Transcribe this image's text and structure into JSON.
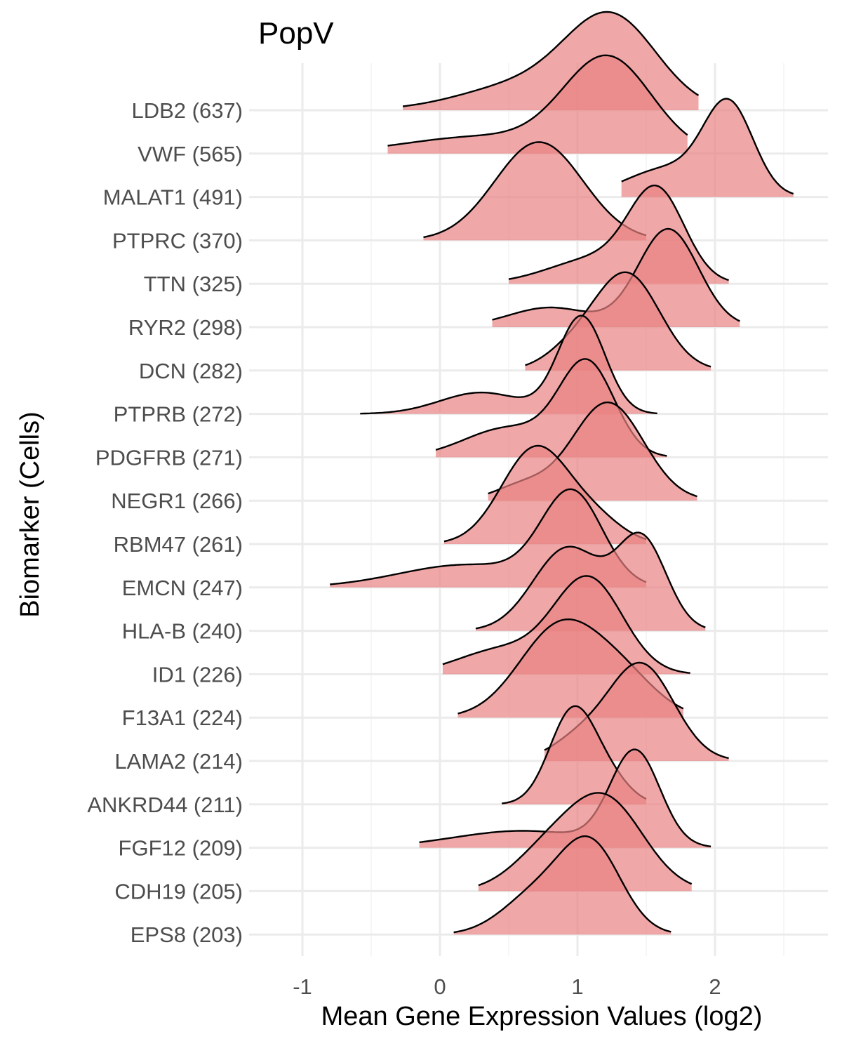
{
  "chart_data": {
    "type": "ridgeline",
    "title": "PopV",
    "xlabel": "Mean Gene Expression Values (log2)",
    "ylabel": "Biomarker (Cells)",
    "xlim": [
      -1.3,
      2.8
    ],
    "x_ticks": [
      -1,
      0,
      1,
      2
    ],
    "x_tick_labels": [
      "-1",
      "0",
      "1",
      "2"
    ],
    "grid": true,
    "fill_color": "#ea8282",
    "outline_color": "#000000",
    "series": [
      {
        "label": "LDB2 (637)",
        "range": [
          -0.27,
          1.88
        ],
        "peaks": [
          {
            "mu": 1.25,
            "sd": 0.33,
            "h": 1.0
          },
          {
            "mu": 0.6,
            "sd": 0.45,
            "h": 0.28
          }
        ]
      },
      {
        "label": "VWF (565)",
        "range": [
          -0.38,
          1.8
        ],
        "peaks": [
          {
            "mu": 1.22,
            "sd": 0.32,
            "h": 1.0
          },
          {
            "mu": 0.3,
            "sd": 0.55,
            "h": 0.18
          }
        ]
      },
      {
        "label": "MALAT1 (491)",
        "range": [
          1.32,
          2.57
        ],
        "peaks": [
          {
            "mu": 2.1,
            "sd": 0.18,
            "h": 1.0
          },
          {
            "mu": 1.65,
            "sd": 0.3,
            "h": 0.32
          }
        ]
      },
      {
        "label": "PTPRC (370)",
        "range": [
          -0.12,
          1.5
        ],
        "peaks": [
          {
            "mu": 0.72,
            "sd": 0.32,
            "h": 1.0
          }
        ]
      },
      {
        "label": "TTN (325)",
        "range": [
          0.5,
          2.1
        ],
        "peaks": [
          {
            "mu": 1.58,
            "sd": 0.2,
            "h": 1.0
          },
          {
            "mu": 1.15,
            "sd": 0.35,
            "h": 0.3
          }
        ]
      },
      {
        "label": "RYR2 (298)",
        "range": [
          0.38,
          2.18
        ],
        "peaks": [
          {
            "mu": 1.66,
            "sd": 0.22,
            "h": 1.0
          },
          {
            "mu": 0.8,
            "sd": 0.3,
            "h": 0.2
          }
        ]
      },
      {
        "label": "DCN (282)",
        "range": [
          0.62,
          1.97
        ],
        "peaks": [
          {
            "mu": 1.36,
            "sd": 0.24,
            "h": 1.0
          },
          {
            "mu": 0.95,
            "sd": 0.2,
            "h": 0.18
          }
        ]
      },
      {
        "label": "PTPRB (272)",
        "range": [
          -0.58,
          1.58
        ],
        "peaks": [
          {
            "mu": 1.03,
            "sd": 0.17,
            "h": 1.0
          },
          {
            "mu": 0.3,
            "sd": 0.3,
            "h": 0.22
          }
        ]
      },
      {
        "label": "PDGFRB (271)",
        "range": [
          -0.03,
          1.65
        ],
        "peaks": [
          {
            "mu": 1.07,
            "sd": 0.2,
            "h": 1.0
          },
          {
            "mu": 0.5,
            "sd": 0.32,
            "h": 0.32
          }
        ]
      },
      {
        "label": "NEGR1 (266)",
        "range": [
          0.35,
          1.87
        ],
        "peaks": [
          {
            "mu": 1.22,
            "sd": 0.26,
            "h": 1.0
          },
          {
            "mu": 0.6,
            "sd": 0.2,
            "h": 0.15
          }
        ]
      },
      {
        "label": "RBM47 (261)",
        "range": [
          0.03,
          1.5
        ],
        "peaks": [
          {
            "mu": 0.7,
            "sd": 0.25,
            "h": 1.0
          },
          {
            "mu": 1.15,
            "sd": 0.2,
            "h": 0.2
          }
        ]
      },
      {
        "label": "EMCN (247)",
        "range": [
          -0.8,
          1.5
        ],
        "peaks": [
          {
            "mu": 0.96,
            "sd": 0.22,
            "h": 1.0
          },
          {
            "mu": 0.2,
            "sd": 0.5,
            "h": 0.25
          }
        ]
      },
      {
        "label": "HLA-B (240)",
        "range": [
          0.26,
          1.93
        ],
        "peaks": [
          {
            "mu": 0.93,
            "sd": 0.25,
            "h": 0.82
          },
          {
            "mu": 1.47,
            "sd": 0.18,
            "h": 0.88
          }
        ]
      },
      {
        "label": "ID1 (226)",
        "range": [
          0.02,
          1.82
        ],
        "peaks": [
          {
            "mu": 1.08,
            "sd": 0.25,
            "h": 1.0
          },
          {
            "mu": 0.45,
            "sd": 0.32,
            "h": 0.26
          }
        ]
      },
      {
        "label": "F13A1 (224)",
        "range": [
          0.13,
          1.77
        ],
        "peaks": [
          {
            "mu": 0.88,
            "sd": 0.3,
            "h": 1.0
          },
          {
            "mu": 1.35,
            "sd": 0.25,
            "h": 0.35
          }
        ]
      },
      {
        "label": "LAMA2 (214)",
        "range": [
          0.76,
          2.1
        ],
        "peaks": [
          {
            "mu": 1.46,
            "sd": 0.24,
            "h": 1.0
          },
          {
            "mu": 1.0,
            "sd": 0.2,
            "h": 0.2
          }
        ]
      },
      {
        "label": "ANKRD44 (211)",
        "range": [
          0.45,
          1.5
        ],
        "peaks": [
          {
            "mu": 0.97,
            "sd": 0.17,
            "h": 1.0
          },
          {
            "mu": 1.25,
            "sd": 0.15,
            "h": 0.2
          }
        ]
      },
      {
        "label": "FGF12 (209)",
        "range": [
          -0.15,
          1.97
        ],
        "peaks": [
          {
            "mu": 1.42,
            "sd": 0.18,
            "h": 1.0
          },
          {
            "mu": 0.6,
            "sd": 0.5,
            "h": 0.18
          }
        ]
      },
      {
        "label": "CDH19 (205)",
        "range": [
          0.28,
          1.83
        ],
        "peaks": [
          {
            "mu": 1.2,
            "sd": 0.28,
            "h": 1.0
          },
          {
            "mu": 0.75,
            "sd": 0.25,
            "h": 0.35
          }
        ]
      },
      {
        "label": "EPS8 (203)",
        "range": [
          0.1,
          1.68
        ],
        "peaks": [
          {
            "mu": 1.1,
            "sd": 0.22,
            "h": 1.0
          },
          {
            "mu": 0.7,
            "sd": 0.25,
            "h": 0.45
          }
        ]
      }
    ]
  }
}
